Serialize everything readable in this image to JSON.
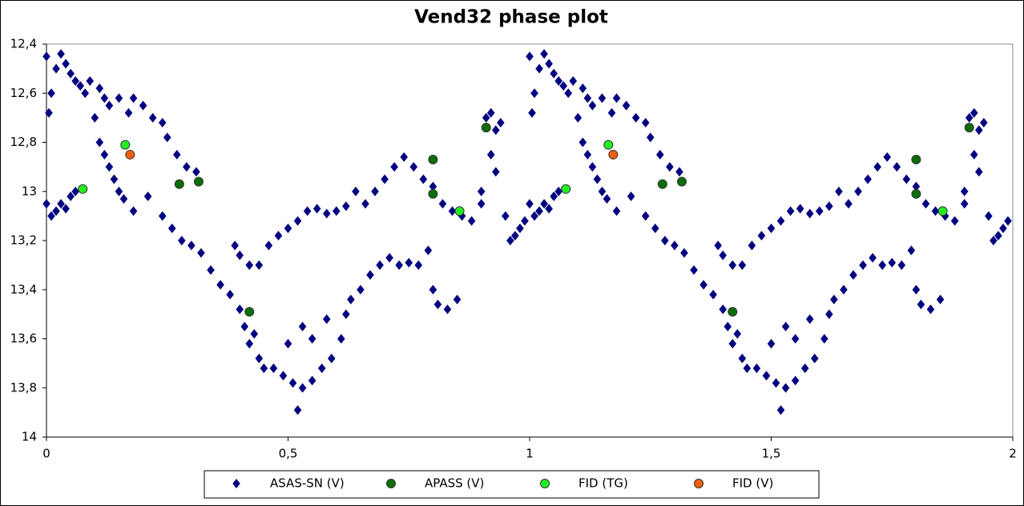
{
  "chart_data": {
    "type": "scatter",
    "title": "Vend32 phase plot",
    "xlim": [
      0,
      2
    ],
    "xticks": [
      0,
      {
        "value": 0.5,
        "label": "0,5"
      },
      1,
      {
        "value": 1.5,
        "label": "1,5"
      },
      2
    ],
    "ylim": [
      14,
      12.4
    ],
    "yticks": [
      {
        "value": 12.4,
        "label": "12,4"
      },
      {
        "value": 12.6,
        "label": "12,6"
      },
      {
        "value": 12.8,
        "label": "12,8"
      },
      13,
      {
        "value": 13.2,
        "label": "13,2"
      },
      {
        "value": 13.4,
        "label": "13,4"
      },
      {
        "value": 13.6,
        "label": "13,6"
      },
      {
        "value": 13.8,
        "label": "13,8"
      },
      14
    ],
    "y_inverted": true,
    "grid": false,
    "legend": "bottom",
    "series": [
      {
        "name": "ASAS-SN (V)",
        "color": "#000080",
        "marker": "diamond",
        "x": [
          0,
          0.005,
          0.01,
          0.02,
          0.03,
          0.04,
          0.05,
          0.06,
          0.07,
          0.08,
          0.09,
          0.1,
          0.11,
          0.12,
          0.13,
          0.15,
          0.17,
          0.18,
          0.2,
          0.22,
          0.24,
          0.25,
          0.27,
          0.29,
          0.31,
          0,
          0.01,
          0.02,
          0.03,
          0.04,
          0.05,
          0.06,
          0.11,
          0.12,
          0.13,
          0.14,
          0.15,
          0.16,
          0.18,
          0.21,
          0.24,
          0.26,
          0.28,
          0.3,
          0.32,
          0.34,
          0.36,
          0.38,
          0.39,
          0.4,
          0.42,
          0.4,
          0.41,
          0.42,
          0.43,
          0.44,
          0.45,
          0.47,
          0.49,
          0.51,
          0.52,
          0.53,
          0.55,
          0.57,
          0.59,
          0.61,
          0.62,
          0.63,
          0.65,
          0.67,
          0.69,
          0.71,
          0.73,
          0.75,
          0.77,
          0.79,
          0.44,
          0.46,
          0.48,
          0.5,
          0.52,
          0.54,
          0.56,
          0.58,
          0.6,
          0.62,
          0.64,
          0.66,
          0.68,
          0.7,
          0.72,
          0.74,
          0.76,
          0.78,
          0.8,
          0.82,
          0.84,
          0.86,
          0.88,
          0.9,
          0.91,
          0.92,
          0.93,
          0.94,
          0.95,
          0.96,
          0.97,
          0.98,
          0.99,
          0.5,
          0.53,
          0.55,
          0.58,
          0.8,
          0.81,
          0.83,
          0.85,
          0.92,
          0.93,
          0.9,
          1,
          1.005,
          1.01,
          1.02,
          1.03,
          1.04,
          1.05,
          1.06,
          1.07,
          1.08,
          1.09,
          1.1,
          1.11,
          1.12,
          1.13,
          1.15,
          1.17,
          1.18,
          1.2,
          1.22,
          1.24,
          1.25,
          1.27,
          1.29,
          1.31,
          1,
          1.01,
          1.02,
          1.03,
          1.04,
          1.05,
          1.06,
          1.11,
          1.12,
          1.13,
          1.14,
          1.15,
          1.16,
          1.18,
          1.21,
          1.24,
          1.26,
          1.28,
          1.3,
          1.32,
          1.34,
          1.36,
          1.38,
          1.39,
          1.4,
          1.42,
          1.4,
          1.41,
          1.42,
          1.43,
          1.44,
          1.45,
          1.47,
          1.49,
          1.51,
          1.52,
          1.53,
          1.55,
          1.57,
          1.59,
          1.61,
          1.62,
          1.63,
          1.65,
          1.67,
          1.69,
          1.71,
          1.73,
          1.75,
          1.77,
          1.79,
          1.44,
          1.46,
          1.48,
          1.5,
          1.52,
          1.54,
          1.56,
          1.58,
          1.6,
          1.62,
          1.64,
          1.66,
          1.68,
          1.7,
          1.72,
          1.74,
          1.76,
          1.78,
          1.8,
          1.82,
          1.84,
          1.86,
          1.88,
          1.9,
          1.91,
          1.92,
          1.93,
          1.94,
          1.95,
          1.96,
          1.97,
          1.98,
          1.99,
          1.5,
          1.53,
          1.55,
          1.58,
          1.8,
          1.81,
          1.83,
          1.85,
          1.92,
          1.93,
          1.9
        ],
        "values": [
          12.45,
          12.68,
          12.6,
          12.5,
          12.44,
          12.48,
          12.52,
          12.55,
          12.57,
          12.6,
          12.55,
          12.7,
          12.58,
          12.62,
          12.65,
          12.62,
          12.68,
          12.62,
          12.65,
          12.7,
          12.72,
          12.78,
          12.85,
          12.9,
          12.92,
          13.05,
          13.1,
          13.08,
          13.05,
          13.07,
          13.02,
          13,
          12.8,
          12.85,
          12.9,
          12.95,
          13,
          13.03,
          13.08,
          13.02,
          13.1,
          13.15,
          13.2,
          13.22,
          13.25,
          13.32,
          13.38,
          13.42,
          13.22,
          13.26,
          13.3,
          13.48,
          13.55,
          13.62,
          13.58,
          13.68,
          13.72,
          13.72,
          13.75,
          13.78,
          13.89,
          13.8,
          13.77,
          13.72,
          13.68,
          13.6,
          13.5,
          13.44,
          13.4,
          13.34,
          13.3,
          13.27,
          13.3,
          13.29,
          13.3,
          13.24,
          13.3,
          13.22,
          13.18,
          13.15,
          13.12,
          13.08,
          13.07,
          13.09,
          13.08,
          13.06,
          13,
          13.05,
          13,
          12.95,
          12.9,
          12.86,
          12.9,
          12.95,
          12.98,
          13.05,
          13.08,
          13.1,
          13.12,
          13.05,
          12.7,
          12.68,
          12.75,
          12.72,
          13.1,
          13.2,
          13.18,
          13.15,
          13.12,
          13.62,
          13.55,
          13.6,
          13.52,
          13.4,
          13.46,
          13.48,
          13.44,
          12.85,
          12.92,
          13,
          12.45,
          12.68,
          12.6,
          12.5,
          12.44,
          12.48,
          12.52,
          12.55,
          12.57,
          12.6,
          12.55,
          12.7,
          12.58,
          12.62,
          12.65,
          12.62,
          12.68,
          12.62,
          12.65,
          12.7,
          12.72,
          12.78,
          12.85,
          12.9,
          12.92,
          13.05,
          13.1,
          13.08,
          13.05,
          13.07,
          13.02,
          13,
          12.8,
          12.85,
          12.9,
          12.95,
          13,
          13.03,
          13.08,
          13.02,
          13.1,
          13.15,
          13.2,
          13.22,
          13.25,
          13.32,
          13.38,
          13.42,
          13.22,
          13.26,
          13.3,
          13.48,
          13.55,
          13.62,
          13.58,
          13.68,
          13.72,
          13.72,
          13.75,
          13.78,
          13.89,
          13.8,
          13.77,
          13.72,
          13.68,
          13.6,
          13.5,
          13.44,
          13.4,
          13.34,
          13.3,
          13.27,
          13.3,
          13.29,
          13.3,
          13.24,
          13.3,
          13.22,
          13.18,
          13.15,
          13.12,
          13.08,
          13.07,
          13.09,
          13.08,
          13.06,
          13,
          13.05,
          13,
          12.95,
          12.9,
          12.86,
          12.9,
          12.95,
          12.98,
          13.05,
          13.08,
          13.1,
          13.12,
          13.05,
          12.7,
          12.68,
          12.75,
          12.72,
          13.1,
          13.2,
          13.18,
          13.15,
          13.12,
          13.62,
          13.55,
          13.6,
          13.52,
          13.4,
          13.46,
          13.48,
          13.44,
          12.85,
          12.92,
          13
        ]
      },
      {
        "name": "APASS (V)",
        "color": "#0b6e0b",
        "marker": "circle",
        "x": [
          0.275,
          0.315,
          0.42,
          0.8,
          0.8,
          0.91,
          1.275,
          1.315,
          1.42,
          1.8,
          1.8,
          1.91
        ],
        "values": [
          12.97,
          12.96,
          13.49,
          12.87,
          13.01,
          12.74,
          12.97,
          12.96,
          13.49,
          12.87,
          13.01,
          12.74
        ]
      },
      {
        "name": "FID (TG)",
        "color": "#22ee22",
        "marker": "circle",
        "x": [
          0.075,
          0.163,
          0.855,
          1.075,
          1.163,
          1.855
        ],
        "values": [
          12.99,
          12.81,
          13.08,
          12.99,
          12.81,
          13.08
        ]
      },
      {
        "name": "FID (V)",
        "color": "#f06010",
        "marker": "circle",
        "x": [
          0.173,
          1.173
        ],
        "values": [
          12.85,
          12.85
        ]
      }
    ]
  }
}
